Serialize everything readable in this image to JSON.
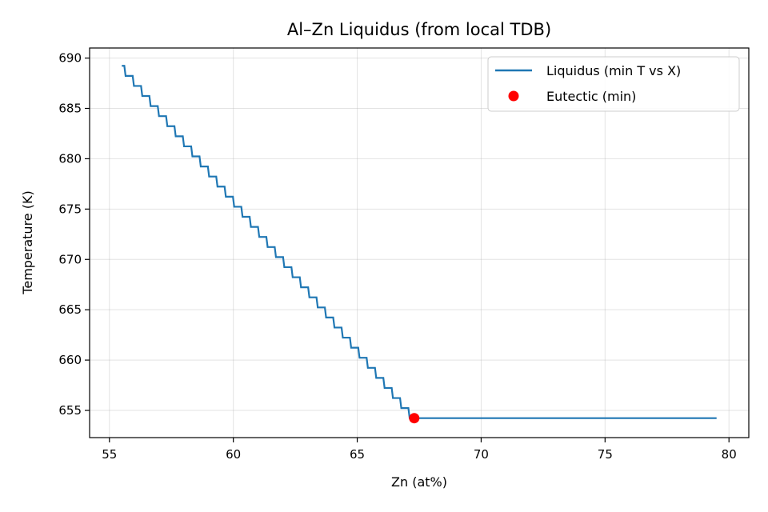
{
  "chart_data": {
    "type": "line",
    "title": "Al–Zn Liquidus (from local TDB)",
    "xlabel": "Zn (at%)",
    "ylabel": "Temperature (K)",
    "xlim": [
      54.2,
      80.8
    ],
    "ylim": [
      652.3,
      691.0
    ],
    "xticks": [
      55,
      60,
      65,
      70,
      75,
      80
    ],
    "yticks": [
      655,
      660,
      665,
      670,
      675,
      680,
      685,
      690
    ],
    "grid": true,
    "legend_position": "top-right",
    "series": [
      {
        "name": "Liquidus (min T vs X)",
        "color": "#1f77b4",
        "steps": {
          "x_start": 55.5,
          "t_start": 689.23,
          "t_end": 654.23,
          "step_height": 1.0,
          "x_end_of_steps": 67.3,
          "x_end": 79.5
        }
      },
      {
        "name": "Eutectic (min)",
        "color": "#ff0000",
        "type": "scatter",
        "points": [
          {
            "x": 67.3,
            "y": 654.23
          }
        ]
      }
    ]
  }
}
